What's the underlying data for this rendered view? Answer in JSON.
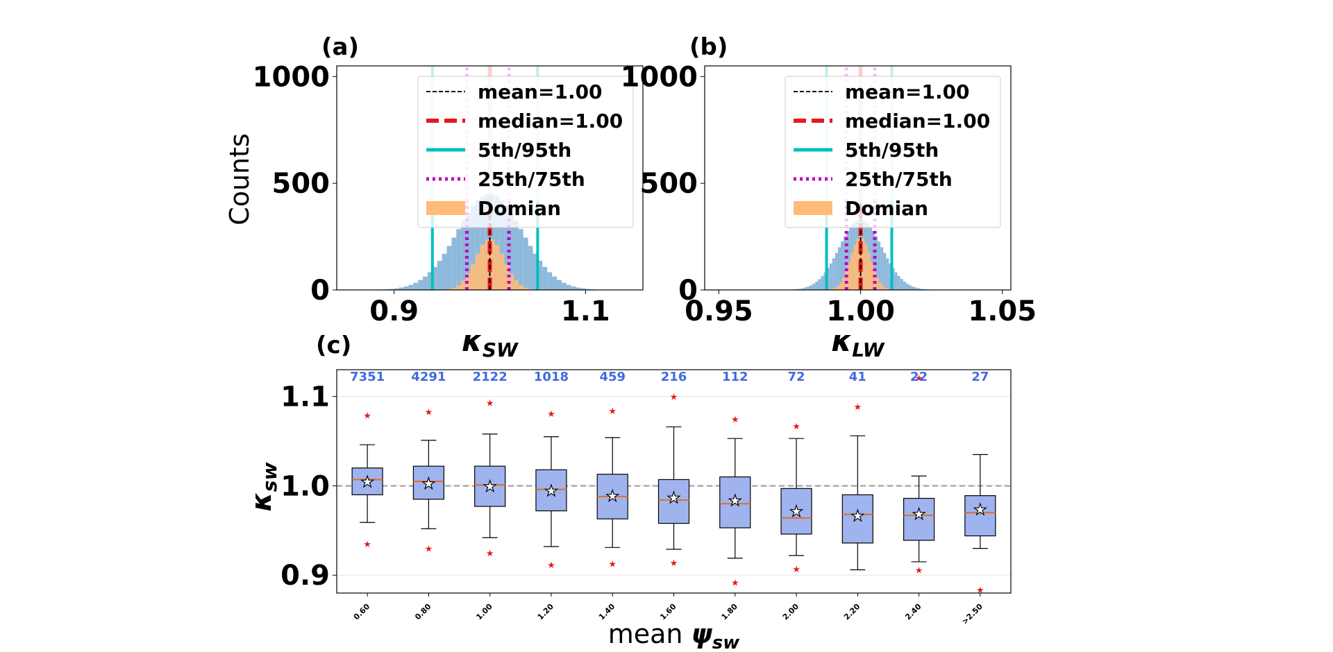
{
  "panels": {
    "a": {
      "letter": "(a)",
      "ylabel": "Counts",
      "xlabel_main": "κ",
      "xlabel_sub": "SW",
      "xlim": [
        0.84,
        1.16
      ],
      "ylim": [
        0,
        1050
      ],
      "xticks": [
        {
          "value": 0.9,
          "label": "0.9"
        },
        {
          "value": 1.1,
          "label": "1.1"
        }
      ],
      "yticks": [
        {
          "value": 0,
          "label": "0"
        },
        {
          "value": 500,
          "label": "500"
        },
        {
          "value": 1000,
          "label": "1000"
        }
      ],
      "hist_mu": 1.0,
      "hist_sigma": 0.034,
      "hist_bin": 0.005,
      "hist_peak": 450,
      "domain_mu": 1.0,
      "domain_sigma": 0.015,
      "domain_bin": 0.005,
      "domain_peak": 240,
      "mean": 1.0,
      "median": 1.0,
      "p5": 0.94,
      "p95": 1.05,
      "p25": 0.976,
      "p75": 1.02
    },
    "b": {
      "letter": "(b)",
      "xlabel_main": "κ",
      "xlabel_sub": "LW",
      "xlim": [
        0.945,
        1.053
      ],
      "ylim": [
        0,
        1050
      ],
      "xticks": [
        {
          "value": 0.95,
          "label": "0.95"
        },
        {
          "value": 1.0,
          "label": "1.00"
        },
        {
          "value": 1.05,
          "label": "1.05"
        }
      ],
      "yticks": [
        {
          "value": 0,
          "label": "0"
        },
        {
          "value": 500,
          "label": "500"
        },
        {
          "value": 1000,
          "label": "1000"
        }
      ],
      "hist_mu": 1.0,
      "hist_sigma": 0.0075,
      "hist_bin": 0.001,
      "hist_peak": 330,
      "domain_mu": 1.0,
      "domain_sigma": 0.0035,
      "domain_bin": 0.001,
      "domain_peak": 250,
      "mean": 1.0,
      "median": 1.0,
      "p5": 0.988,
      "p95": 1.011,
      "p25": 0.995,
      "p75": 1.005
    }
  },
  "legend": {
    "items": [
      {
        "label": "mean=1.00",
        "color": "#000000",
        "style": "dashed-thin"
      },
      {
        "label": "median=1.00",
        "color": "#e41a1c",
        "style": "dashed-thick"
      },
      {
        "label": "5th/95th",
        "color": "#00bfbf",
        "style": "solid"
      },
      {
        "label": "25th/75th",
        "color": "#bf00bf",
        "style": "dotted"
      },
      {
        "label": "Domian",
        "color": "#ffbb78",
        "style": "patch"
      }
    ]
  },
  "panel_c": {
    "letter": "(c)",
    "ylabel_main": "κ",
    "ylabel_sub": "sw",
    "xlabel_prefix": "mean ",
    "xlabel_main": "ψ",
    "xlabel_sub": "sw",
    "ylim": [
      0.88,
      1.13
    ],
    "yticks": [
      {
        "value": 0.9,
        "label": "0.9"
      },
      {
        "value": 1.0,
        "label": "1.0"
      },
      {
        "value": 1.1,
        "label": "1.1"
      }
    ],
    "reference_line": 1.0,
    "box_color": "#9fb3ee",
    "median_color": "#e07020",
    "flier_color": "#e41a1c",
    "count_color": "#4169e1",
    "boxes": [
      {
        "label": "0.60",
        "count": "7351",
        "wlo": 0.959,
        "q1": 0.99,
        "med": 1.007,
        "q3": 1.02,
        "whi": 1.046,
        "mean": 1.005,
        "outlo": 0.935,
        "outhi": 1.079
      },
      {
        "label": "0.80",
        "count": "4291",
        "wlo": 0.952,
        "q1": 0.985,
        "med": 1.005,
        "q3": 1.022,
        "whi": 1.051,
        "mean": 1.003,
        "outlo": 0.93,
        "outhi": 1.083
      },
      {
        "label": "1.00",
        "count": "2122",
        "wlo": 0.942,
        "q1": 0.977,
        "med": 1.001,
        "q3": 1.022,
        "whi": 1.058,
        "mean": 1.0,
        "outlo": 0.925,
        "outhi": 1.093
      },
      {
        "label": "1.20",
        "count": "1018",
        "wlo": 0.932,
        "q1": 0.972,
        "med": 0.996,
        "q3": 1.018,
        "whi": 1.055,
        "mean": 0.995,
        "outlo": 0.912,
        "outhi": 1.081
      },
      {
        "label": "1.40",
        "count": "459",
        "wlo": 0.931,
        "q1": 0.963,
        "med": 0.988,
        "q3": 1.013,
        "whi": 1.054,
        "mean": 0.989,
        "outlo": 0.913,
        "outhi": 1.084
      },
      {
        "label": "1.60",
        "count": "216",
        "wlo": 0.929,
        "q1": 0.958,
        "med": 0.984,
        "q3": 1.007,
        "whi": 1.066,
        "mean": 0.987,
        "outlo": 0.914,
        "outhi": 1.1
      },
      {
        "label": "1.80",
        "count": "112",
        "wlo": 0.919,
        "q1": 0.953,
        "med": 0.98,
        "q3": 1.01,
        "whi": 1.053,
        "mean": 0.984,
        "outlo": 0.892,
        "outhi": 1.075
      },
      {
        "label": "2.00",
        "count": "72",
        "wlo": 0.922,
        "q1": 0.946,
        "med": 0.964,
        "q3": 0.997,
        "whi": 1.053,
        "mean": 0.972,
        "outlo": 0.907,
        "outhi": 1.067
      },
      {
        "label": "2.20",
        "count": "41",
        "wlo": 0.906,
        "q1": 0.936,
        "med": 0.968,
        "q3": 0.99,
        "whi": 1.056,
        "mean": 0.967,
        "outlo": null,
        "outhi": 1.089
      },
      {
        "label": "2.40",
        "count": "22",
        "wlo": 0.915,
        "q1": 0.939,
        "med": 0.967,
        "q3": 0.986,
        "whi": 1.011,
        "mean": 0.969,
        "outlo": 0.906,
        "outhi": 1.121
      },
      {
        "label": ">2.50",
        "count": "27",
        "wlo": 0.93,
        "q1": 0.944,
        "med": 0.97,
        "q3": 0.989,
        "whi": 1.035,
        "mean": 0.974,
        "outlo": 0.884,
        "outhi": null
      }
    ]
  },
  "chart_data": [
    {
      "type": "bar",
      "title": "(a)",
      "xlabel": "κSW",
      "ylabel": "Counts",
      "xlim": [
        0.84,
        1.16
      ],
      "ylim": [
        0,
        1050
      ],
      "series": [
        {
          "name": "mean=1.00",
          "values": [
            1.0
          ]
        },
        {
          "name": "median=1.00",
          "values": [
            1.0
          ]
        },
        {
          "name": "5th/95th",
          "values": [
            0.94,
            1.05
          ]
        },
        {
          "name": "25th/75th",
          "values": [
            0.976,
            1.02
          ]
        },
        {
          "name": "Domian",
          "values": []
        }
      ],
      "legend": "top-right"
    },
    {
      "type": "bar",
      "title": "(b)",
      "xlabel": "κLW",
      "xlim": [
        0.945,
        1.053
      ],
      "ylim": [
        0,
        1050
      ],
      "series": [
        {
          "name": "mean=1.00",
          "values": [
            1.0
          ]
        },
        {
          "name": "median=1.00",
          "values": [
            1.0
          ]
        },
        {
          "name": "5th/95th",
          "values": [
            0.988,
            1.011
          ]
        },
        {
          "name": "25th/75th",
          "values": [
            0.995,
            1.005
          ]
        },
        {
          "name": "Domian",
          "values": []
        }
      ],
      "legend": "top-right"
    },
    {
      "type": "box",
      "title": "(c)",
      "xlabel": "mean ψsw",
      "ylabel": "κsw",
      "ylim": [
        0.88,
        1.13
      ],
      "categories": [
        "0.60",
        "0.80",
        "1.00",
        "1.20",
        "1.40",
        "1.60",
        "1.80",
        "2.00",
        "2.20",
        "2.40",
        ">2.50"
      ],
      "counts": [
        7351,
        4291,
        2122,
        1018,
        459,
        216,
        112,
        72,
        41,
        22,
        27
      ]
    }
  ]
}
